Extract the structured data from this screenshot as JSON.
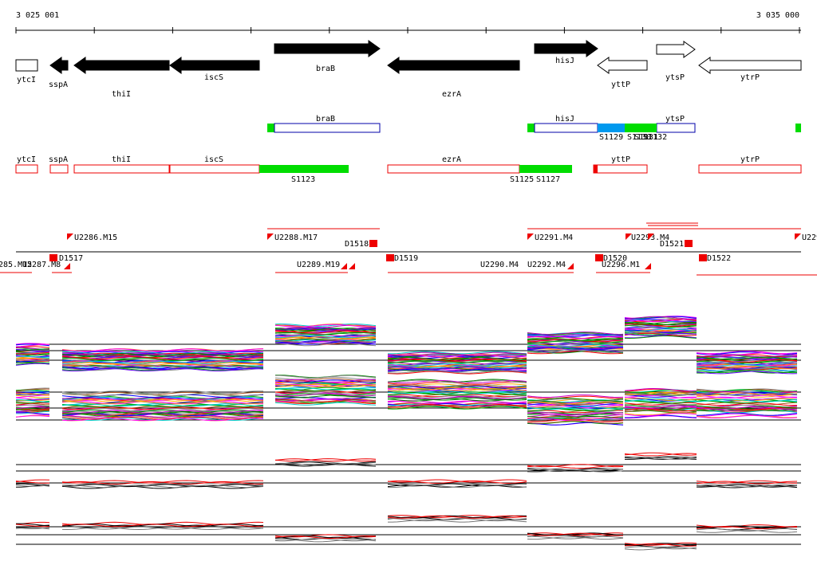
{
  "ruler": {
    "start_label": "3 025 001",
    "end_label": "3 035 000"
  },
  "genes": [
    "ytcI",
    "sspA",
    "thiI",
    "iscS",
    "braB",
    "ezrA",
    "hisJ",
    "yttP",
    "ytsP",
    "ytrP"
  ],
  "track2": {
    "genes": [
      "braB",
      "hisJ",
      "ytsP"
    ],
    "features": [
      "S1129",
      "S1130",
      "S1131",
      "S1132"
    ]
  },
  "track3": {
    "genes": [
      "ytcI",
      "sspA",
      "thiI",
      "iscS",
      "ezrA",
      "yttP",
      "ytrP"
    ],
    "features": [
      "S1123",
      "S1125",
      "S1127"
    ]
  },
  "track4": {
    "labels": [
      "U2286.M15",
      "U2288.M17",
      "D1518",
      "U2291.M4",
      "U2293.M4",
      "D1521",
      "U229",
      "285.M15",
      "U2287.M8",
      "D1517",
      "U2289.M19",
      "D1519",
      "U2290.M4",
      "U2292.M4",
      "D1520",
      "U2296.M1",
      "D1522"
    ]
  }
}
